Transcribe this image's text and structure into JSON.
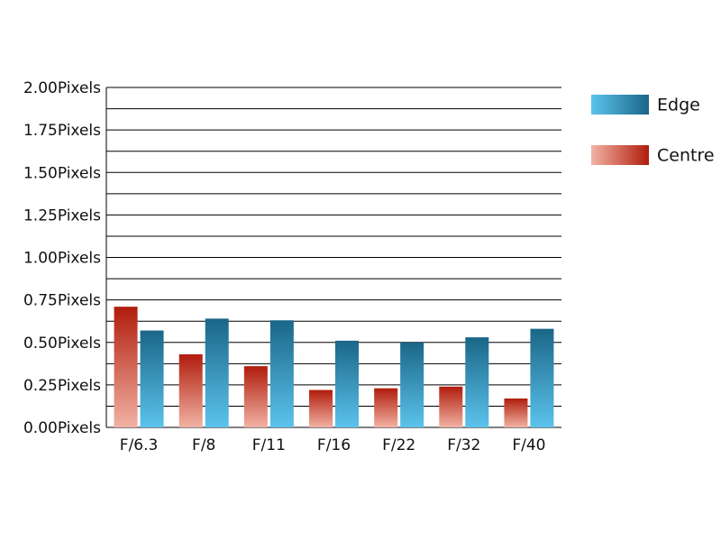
{
  "chart_data": {
    "type": "bar",
    "categories": [
      "F/6.3",
      "F/8",
      "F/11",
      "F/16",
      "F/22",
      "F/32",
      "F/40"
    ],
    "series": [
      {
        "name": "Edge",
        "color": [
          "#1a6688",
          "#5cc3ec"
        ],
        "values": [
          0.57,
          0.64,
          0.63,
          0.51,
          0.5,
          0.53,
          0.58
        ]
      },
      {
        "name": "Centre",
        "color": [
          "#b01c0c",
          "#f2b2a4"
        ],
        "values": [
          0.71,
          0.43,
          0.36,
          0.22,
          0.23,
          0.24,
          0.17
        ]
      }
    ],
    "ylim": [
      0,
      2
    ],
    "yticks": [
      {
        "value": 0,
        "label": "0.00Pixels"
      },
      {
        "value": 0.25,
        "label": "0.25Pixels"
      },
      {
        "value": 0.5,
        "label": "0.50Pixels"
      },
      {
        "value": 0.75,
        "label": "0.75Pixels"
      },
      {
        "value": 1,
        "label": "1.00Pixels"
      },
      {
        "value": 1.25,
        "label": "1.25Pixels"
      },
      {
        "value": 1.5,
        "label": "1.50Pixels"
      },
      {
        "value": 1.75,
        "label": "1.75Pixels"
      },
      {
        "value": 2,
        "label": "2.00Pixels"
      }
    ],
    "minor_yticks": [
      0.125,
      0.375,
      0.625,
      0.875,
      1.125,
      1.375,
      1.625,
      1.875
    ],
    "grid": true,
    "legend": "right"
  }
}
